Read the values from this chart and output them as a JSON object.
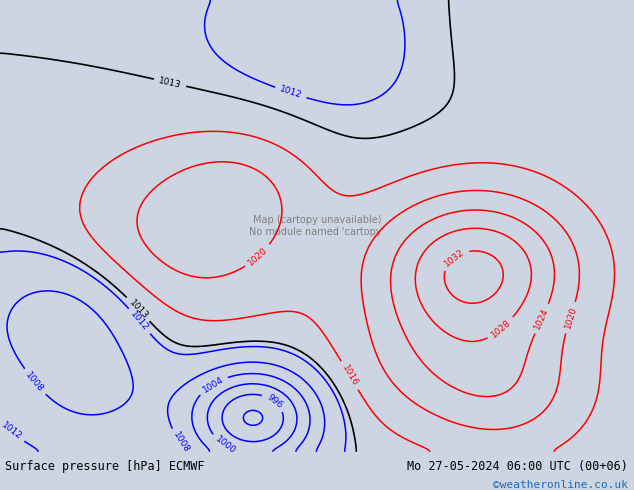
{
  "title_left": "Surface pressure [hPa] ECMWF",
  "title_right": "Mo 27-05-2024 06:00 UTC (00+06)",
  "copyright": "©weatheronline.co.uk",
  "bg_color": "#cdd5e3",
  "land_color": "#aed080",
  "figsize": [
    6.34,
    4.9
  ],
  "dpi": 100,
  "bottom_bar_color": "#e8e8e8",
  "bottom_text_color": "#000000",
  "copyright_color": "#1a6bbf",
  "lon_min": -110,
  "lon_max": -10,
  "lat_min": -72,
  "lat_max": 20,
  "pressure_centers": [
    {
      "lon": -35,
      "lat": -35,
      "dp": 20,
      "scale": 250
    },
    {
      "lon": -100,
      "lat": -45,
      "dp": -8,
      "scale": 180
    },
    {
      "lon": -70,
      "lat": -65,
      "dp": -22,
      "scale": 100
    },
    {
      "lon": -60,
      "lat": 12,
      "dp": -2,
      "scale": 500
    },
    {
      "lon": -20,
      "lat": 15,
      "dp": 2,
      "scale": 400
    },
    {
      "lon": -80,
      "lat": -28,
      "dp": 9,
      "scale": 350
    },
    {
      "lon": -45,
      "lat": -55,
      "dp": 5,
      "scale": 200
    },
    {
      "lon": -95,
      "lat": -60,
      "dp": -5,
      "scale": 120
    },
    {
      "lon": -30,
      "lat": -60,
      "dp": 8,
      "scale": 180
    },
    {
      "lon": -72,
      "lat": -18,
      "dp": 4,
      "scale": 120
    }
  ],
  "black_levels": [
    1013
  ],
  "red_levels": [
    1016,
    1020,
    1024,
    1028,
    1032
  ],
  "blue_levels": [
    992,
    996,
    1000,
    1004,
    1008,
    1012
  ],
  "contour_linewidth": 1.1,
  "label_fontsize": 6.5
}
